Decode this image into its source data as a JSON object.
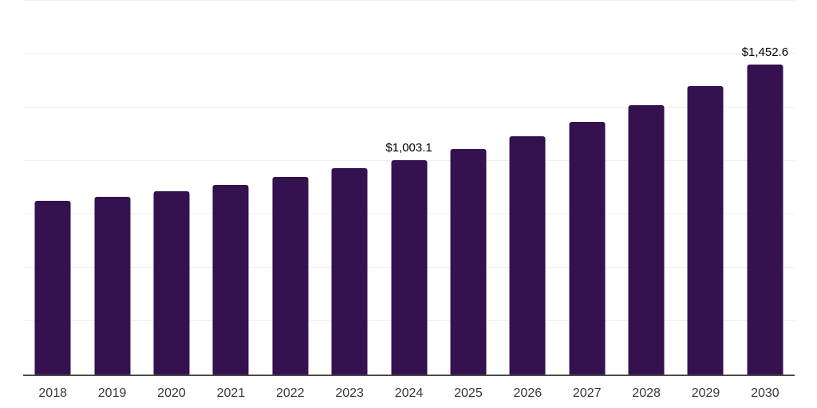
{
  "chart_data": {
    "type": "bar",
    "title": "",
    "xlabel": "",
    "ylabel": "",
    "categories": [
      "2018",
      "2019",
      "2020",
      "2021",
      "2022",
      "2023",
      "2024",
      "2025",
      "2026",
      "2027",
      "2028",
      "2029",
      "2030"
    ],
    "values": [
      814.6,
      831.2,
      858.3,
      889.2,
      926.5,
      967.5,
      1003.1,
      1054.8,
      1116.8,
      1183.9,
      1261.2,
      1349.6,
      1452.6
    ],
    "data_labels": [
      "",
      "",
      "",
      "",
      "",
      "",
      "$1,003.1",
      "",
      "",
      "",
      "",
      "",
      "$1,452.6"
    ],
    "ylim": [
      0,
      1750
    ],
    "grid": true,
    "grid_step": 250,
    "legend": "none",
    "y_axis_labels_visible": false
  },
  "colors": {
    "bar": "#361150",
    "gridline": "#efefef",
    "axis_line": "#4a4a4a",
    "tick_label": "#383838",
    "data_label": "#000000",
    "background": "#ffffff"
  }
}
